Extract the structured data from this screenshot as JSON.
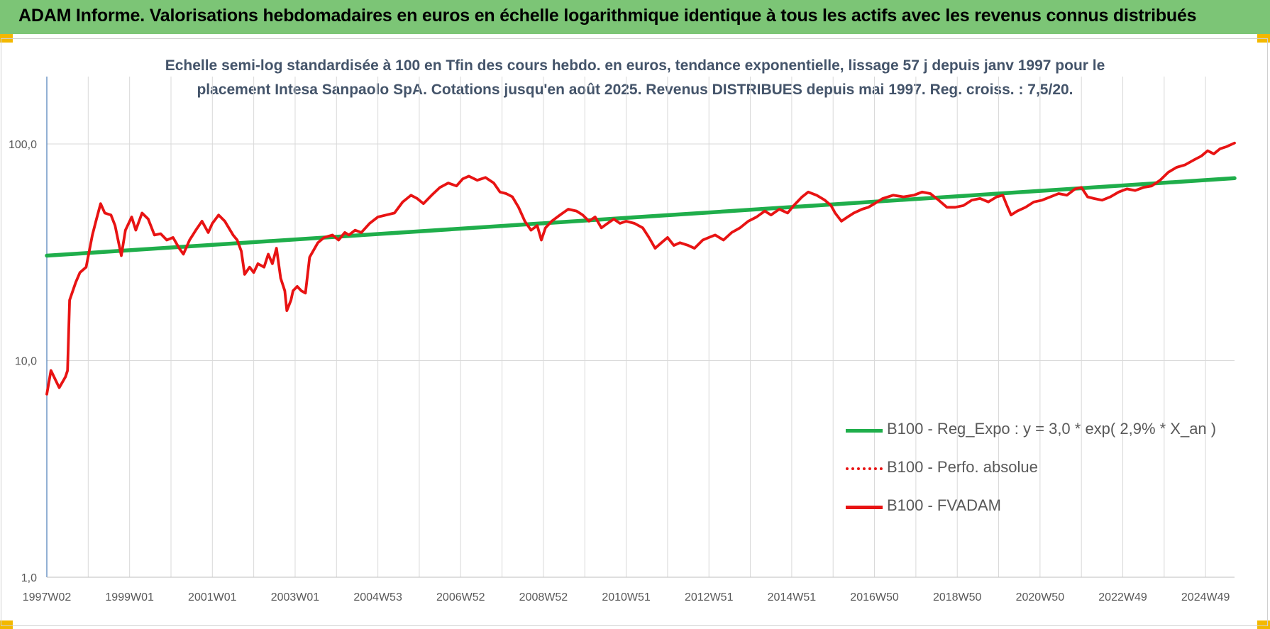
{
  "banner": {
    "title": "ADAM Informe. Valorisations hebdomadaires en euros en échelle logarithmique identique à tous les actifs avec les revenus connus distribués"
  },
  "colors": {
    "banner_bg": "#7cc576",
    "corner_marks": "#f3b800",
    "regression": "#1fae4b",
    "fvadam": "#e81313",
    "perfo": "#e81313",
    "subtitle_text": "#44546a"
  },
  "chart_data": {
    "type": "line",
    "title": "Echelle semi-log standardisée à 100 en Tfin des cours hebdo. en euros, tendance exponentielle, lissage 57 j depuis janv 1997 pour le placement Intesa Sanpaolo SpA. Cotations jusqu'en août 2025. Revenus DISTRIBUES depuis mai 1997. Reg. croiss. : 7,5/20.",
    "title_lines": [
      "Echelle semi-log standardisée à 100 en Tfin des cours hebdo. en euros, tendance exponentielle, lissage 57 j depuis janv 1997 pour le",
      "placement Intesa Sanpaolo SpA. Cotations jusqu'en août 2025. Revenus DISTRIBUES depuis mai 1997. Reg. croiss. : 7,5/20."
    ],
    "y_scale": "log",
    "ylim": [
      1,
      200
    ],
    "y_ticks": [
      {
        "value": 100,
        "label": "100,0"
      },
      {
        "value": 10,
        "label": "10,0"
      },
      {
        "value": 1,
        "label": "1,0"
      }
    ],
    "x_range": [
      1997.0,
      2025.7
    ],
    "x_ticks": [
      {
        "x": 1997.0,
        "label": "1997W02"
      },
      {
        "x": 1999.0,
        "label": "1999W01"
      },
      {
        "x": 2001.0,
        "label": "2001W01"
      },
      {
        "x": 2003.0,
        "label": "2003W01"
      },
      {
        "x": 2005.0,
        "label": "2004W53"
      },
      {
        "x": 2007.0,
        "label": "2006W52"
      },
      {
        "x": 2009.0,
        "label": "2008W52"
      },
      {
        "x": 2011.0,
        "label": "2010W51"
      },
      {
        "x": 2013.0,
        "label": "2012W51"
      },
      {
        "x": 2015.0,
        "label": "2014W51"
      },
      {
        "x": 2017.0,
        "label": "2016W50"
      },
      {
        "x": 2019.0,
        "label": "2018W50"
      },
      {
        "x": 2021.0,
        "label": "2020W50"
      },
      {
        "x": 2023.0,
        "label": "2022W49"
      },
      {
        "x": 2025.0,
        "label": "2024W49"
      }
    ],
    "grid": true,
    "legend_position": "bottom-right",
    "series": [
      {
        "name": "B100 - Reg_Expo : y = 3,0 * exp( 2,9% *  X_an )",
        "style": "solid-thick",
        "points": [
          [
            1997.0,
            30.5
          ],
          [
            2025.7,
            69.5
          ]
        ]
      },
      {
        "name": "B100 - Perfo. absolue",
        "style": "dotted",
        "points": []
      },
      {
        "name": "B100 - FVADAM",
        "style": "solid",
        "points": [
          [
            1997.0,
            7.0
          ],
          [
            1997.1,
            9.0
          ],
          [
            1997.3,
            7.5
          ],
          [
            1997.45,
            8.4
          ],
          [
            1997.5,
            9.0
          ],
          [
            1997.55,
            19.0
          ],
          [
            1997.7,
            23.0
          ],
          [
            1997.8,
            25.5
          ],
          [
            1997.95,
            27.0
          ],
          [
            1998.1,
            38.0
          ],
          [
            1998.2,
            45.0
          ],
          [
            1998.3,
            53.0
          ],
          [
            1998.4,
            48.0
          ],
          [
            1998.55,
            47.0
          ],
          [
            1998.65,
            42.0
          ],
          [
            1998.8,
            30.5
          ],
          [
            1998.9,
            40.0
          ],
          [
            1999.05,
            46.0
          ],
          [
            1999.15,
            40.0
          ],
          [
            1999.3,
            48.0
          ],
          [
            1999.45,
            45.0
          ],
          [
            1999.6,
            38.0
          ],
          [
            1999.75,
            38.5
          ],
          [
            1999.9,
            36.0
          ],
          [
            2000.05,
            37.0
          ],
          [
            2000.2,
            33.0
          ],
          [
            2000.3,
            31.0
          ],
          [
            2000.45,
            36.0
          ],
          [
            2000.6,
            40.0
          ],
          [
            2000.75,
            44.0
          ],
          [
            2000.9,
            39.0
          ],
          [
            2001.0,
            43.0
          ],
          [
            2001.15,
            47.0
          ],
          [
            2001.3,
            44.0
          ],
          [
            2001.5,
            38.0
          ],
          [
            2001.6,
            36.0
          ],
          [
            2001.7,
            32.0
          ],
          [
            2001.78,
            25.0
          ],
          [
            2001.9,
            27.0
          ],
          [
            2002.0,
            25.5
          ],
          [
            2002.1,
            28.0
          ],
          [
            2002.25,
            27.0
          ],
          [
            2002.35,
            31.0
          ],
          [
            2002.45,
            28.0
          ],
          [
            2002.55,
            33.0
          ],
          [
            2002.65,
            24.0
          ],
          [
            2002.75,
            21.0
          ],
          [
            2002.8,
            17.0
          ],
          [
            2002.9,
            19.0
          ],
          [
            2002.95,
            21.0
          ],
          [
            2003.05,
            22.0
          ],
          [
            2003.15,
            21.0
          ],
          [
            2003.25,
            20.5
          ],
          [
            2003.35,
            30.0
          ],
          [
            2003.55,
            35.0
          ],
          [
            2003.7,
            37.0
          ],
          [
            2003.9,
            38.0
          ],
          [
            2004.05,
            36.0
          ],
          [
            2004.2,
            39.0
          ],
          [
            2004.3,
            38.0
          ],
          [
            2004.45,
            40.0
          ],
          [
            2004.6,
            39.0
          ],
          [
            2004.8,
            43.0
          ],
          [
            2005.0,
            46.0
          ],
          [
            2005.2,
            47.0
          ],
          [
            2005.4,
            48.0
          ],
          [
            2005.6,
            54.0
          ],
          [
            2005.8,
            58.0
          ],
          [
            2005.95,
            56.0
          ],
          [
            2006.1,
            53.0
          ],
          [
            2006.3,
            58.0
          ],
          [
            2006.5,
            63.0
          ],
          [
            2006.7,
            66.0
          ],
          [
            2006.9,
            64.0
          ],
          [
            2007.05,
            69.0
          ],
          [
            2007.2,
            71.0
          ],
          [
            2007.4,
            68.0
          ],
          [
            2007.6,
            70.0
          ],
          [
            2007.8,
            66.0
          ],
          [
            2007.95,
            60.0
          ],
          [
            2008.1,
            59.0
          ],
          [
            2008.25,
            57.0
          ],
          [
            2008.4,
            51.0
          ],
          [
            2008.55,
            44.0
          ],
          [
            2008.7,
            40.0
          ],
          [
            2008.85,
            42.0
          ],
          [
            2008.95,
            36.0
          ],
          [
            2009.05,
            41.0
          ],
          [
            2009.2,
            44.0
          ],
          [
            2009.4,
            47.0
          ],
          [
            2009.6,
            50.0
          ],
          [
            2009.8,
            49.0
          ],
          [
            2009.95,
            47.0
          ],
          [
            2010.1,
            44.0
          ],
          [
            2010.25,
            46.0
          ],
          [
            2010.4,
            41.0
          ],
          [
            2010.55,
            43.0
          ],
          [
            2010.7,
            45.0
          ],
          [
            2010.85,
            43.0
          ],
          [
            2011.0,
            44.0
          ],
          [
            2011.2,
            43.0
          ],
          [
            2011.4,
            41.0
          ],
          [
            2011.55,
            37.0
          ],
          [
            2011.7,
            33.0
          ],
          [
            2011.85,
            35.0
          ],
          [
            2012.0,
            37.0
          ],
          [
            2012.15,
            34.0
          ],
          [
            2012.3,
            35.0
          ],
          [
            2012.5,
            34.0
          ],
          [
            2012.65,
            33.0
          ],
          [
            2012.85,
            36.0
          ],
          [
            2013.0,
            37.0
          ],
          [
            2013.15,
            38.0
          ],
          [
            2013.35,
            36.0
          ],
          [
            2013.55,
            39.0
          ],
          [
            2013.75,
            41.0
          ],
          [
            2013.95,
            44.0
          ],
          [
            2014.15,
            46.0
          ],
          [
            2014.35,
            49.0
          ],
          [
            2014.5,
            47.0
          ],
          [
            2014.7,
            50.0
          ],
          [
            2014.9,
            48.0
          ],
          [
            2015.05,
            52.0
          ],
          [
            2015.25,
            57.0
          ],
          [
            2015.4,
            60.0
          ],
          [
            2015.6,
            58.0
          ],
          [
            2015.8,
            55.0
          ],
          [
            2015.95,
            52.0
          ],
          [
            2016.05,
            48.0
          ],
          [
            2016.2,
            44.0
          ],
          [
            2016.35,
            46.0
          ],
          [
            2016.5,
            48.0
          ],
          [
            2016.7,
            50.0
          ],
          [
            2016.85,
            51.0
          ],
          [
            2017.0,
            53.0
          ],
          [
            2017.2,
            56.0
          ],
          [
            2017.45,
            58.0
          ],
          [
            2017.7,
            57.0
          ],
          [
            2017.95,
            58.0
          ],
          [
            2018.15,
            60.0
          ],
          [
            2018.35,
            59.0
          ],
          [
            2018.55,
            55.0
          ],
          [
            2018.75,
            51.0
          ],
          [
            2018.95,
            51.0
          ],
          [
            2019.15,
            52.0
          ],
          [
            2019.35,
            55.0
          ],
          [
            2019.55,
            56.0
          ],
          [
            2019.75,
            54.0
          ],
          [
            2019.95,
            57.0
          ],
          [
            2020.1,
            58.0
          ],
          [
            2020.2,
            52.0
          ],
          [
            2020.3,
            47.0
          ],
          [
            2020.45,
            49.0
          ],
          [
            2020.65,
            51.0
          ],
          [
            2020.85,
            54.0
          ],
          [
            2021.05,
            55.0
          ],
          [
            2021.25,
            57.0
          ],
          [
            2021.45,
            59.0
          ],
          [
            2021.65,
            58.0
          ],
          [
            2021.85,
            62.0
          ],
          [
            2022.0,
            63.0
          ],
          [
            2022.15,
            57.0
          ],
          [
            2022.3,
            56.0
          ],
          [
            2022.5,
            55.0
          ],
          [
            2022.7,
            57.0
          ],
          [
            2022.9,
            60.0
          ],
          [
            2023.1,
            62.0
          ],
          [
            2023.3,
            61.0
          ],
          [
            2023.5,
            63.0
          ],
          [
            2023.7,
            64.0
          ],
          [
            2023.9,
            68.0
          ],
          [
            2024.1,
            74.0
          ],
          [
            2024.3,
            78.0
          ],
          [
            2024.5,
            80.0
          ],
          [
            2024.7,
            84.0
          ],
          [
            2024.9,
            88.0
          ],
          [
            2025.05,
            93.0
          ],
          [
            2025.2,
            90.0
          ],
          [
            2025.35,
            95.0
          ],
          [
            2025.5,
            97.0
          ],
          [
            2025.6,
            99.0
          ],
          [
            2025.7,
            101.0
          ]
        ]
      }
    ]
  }
}
